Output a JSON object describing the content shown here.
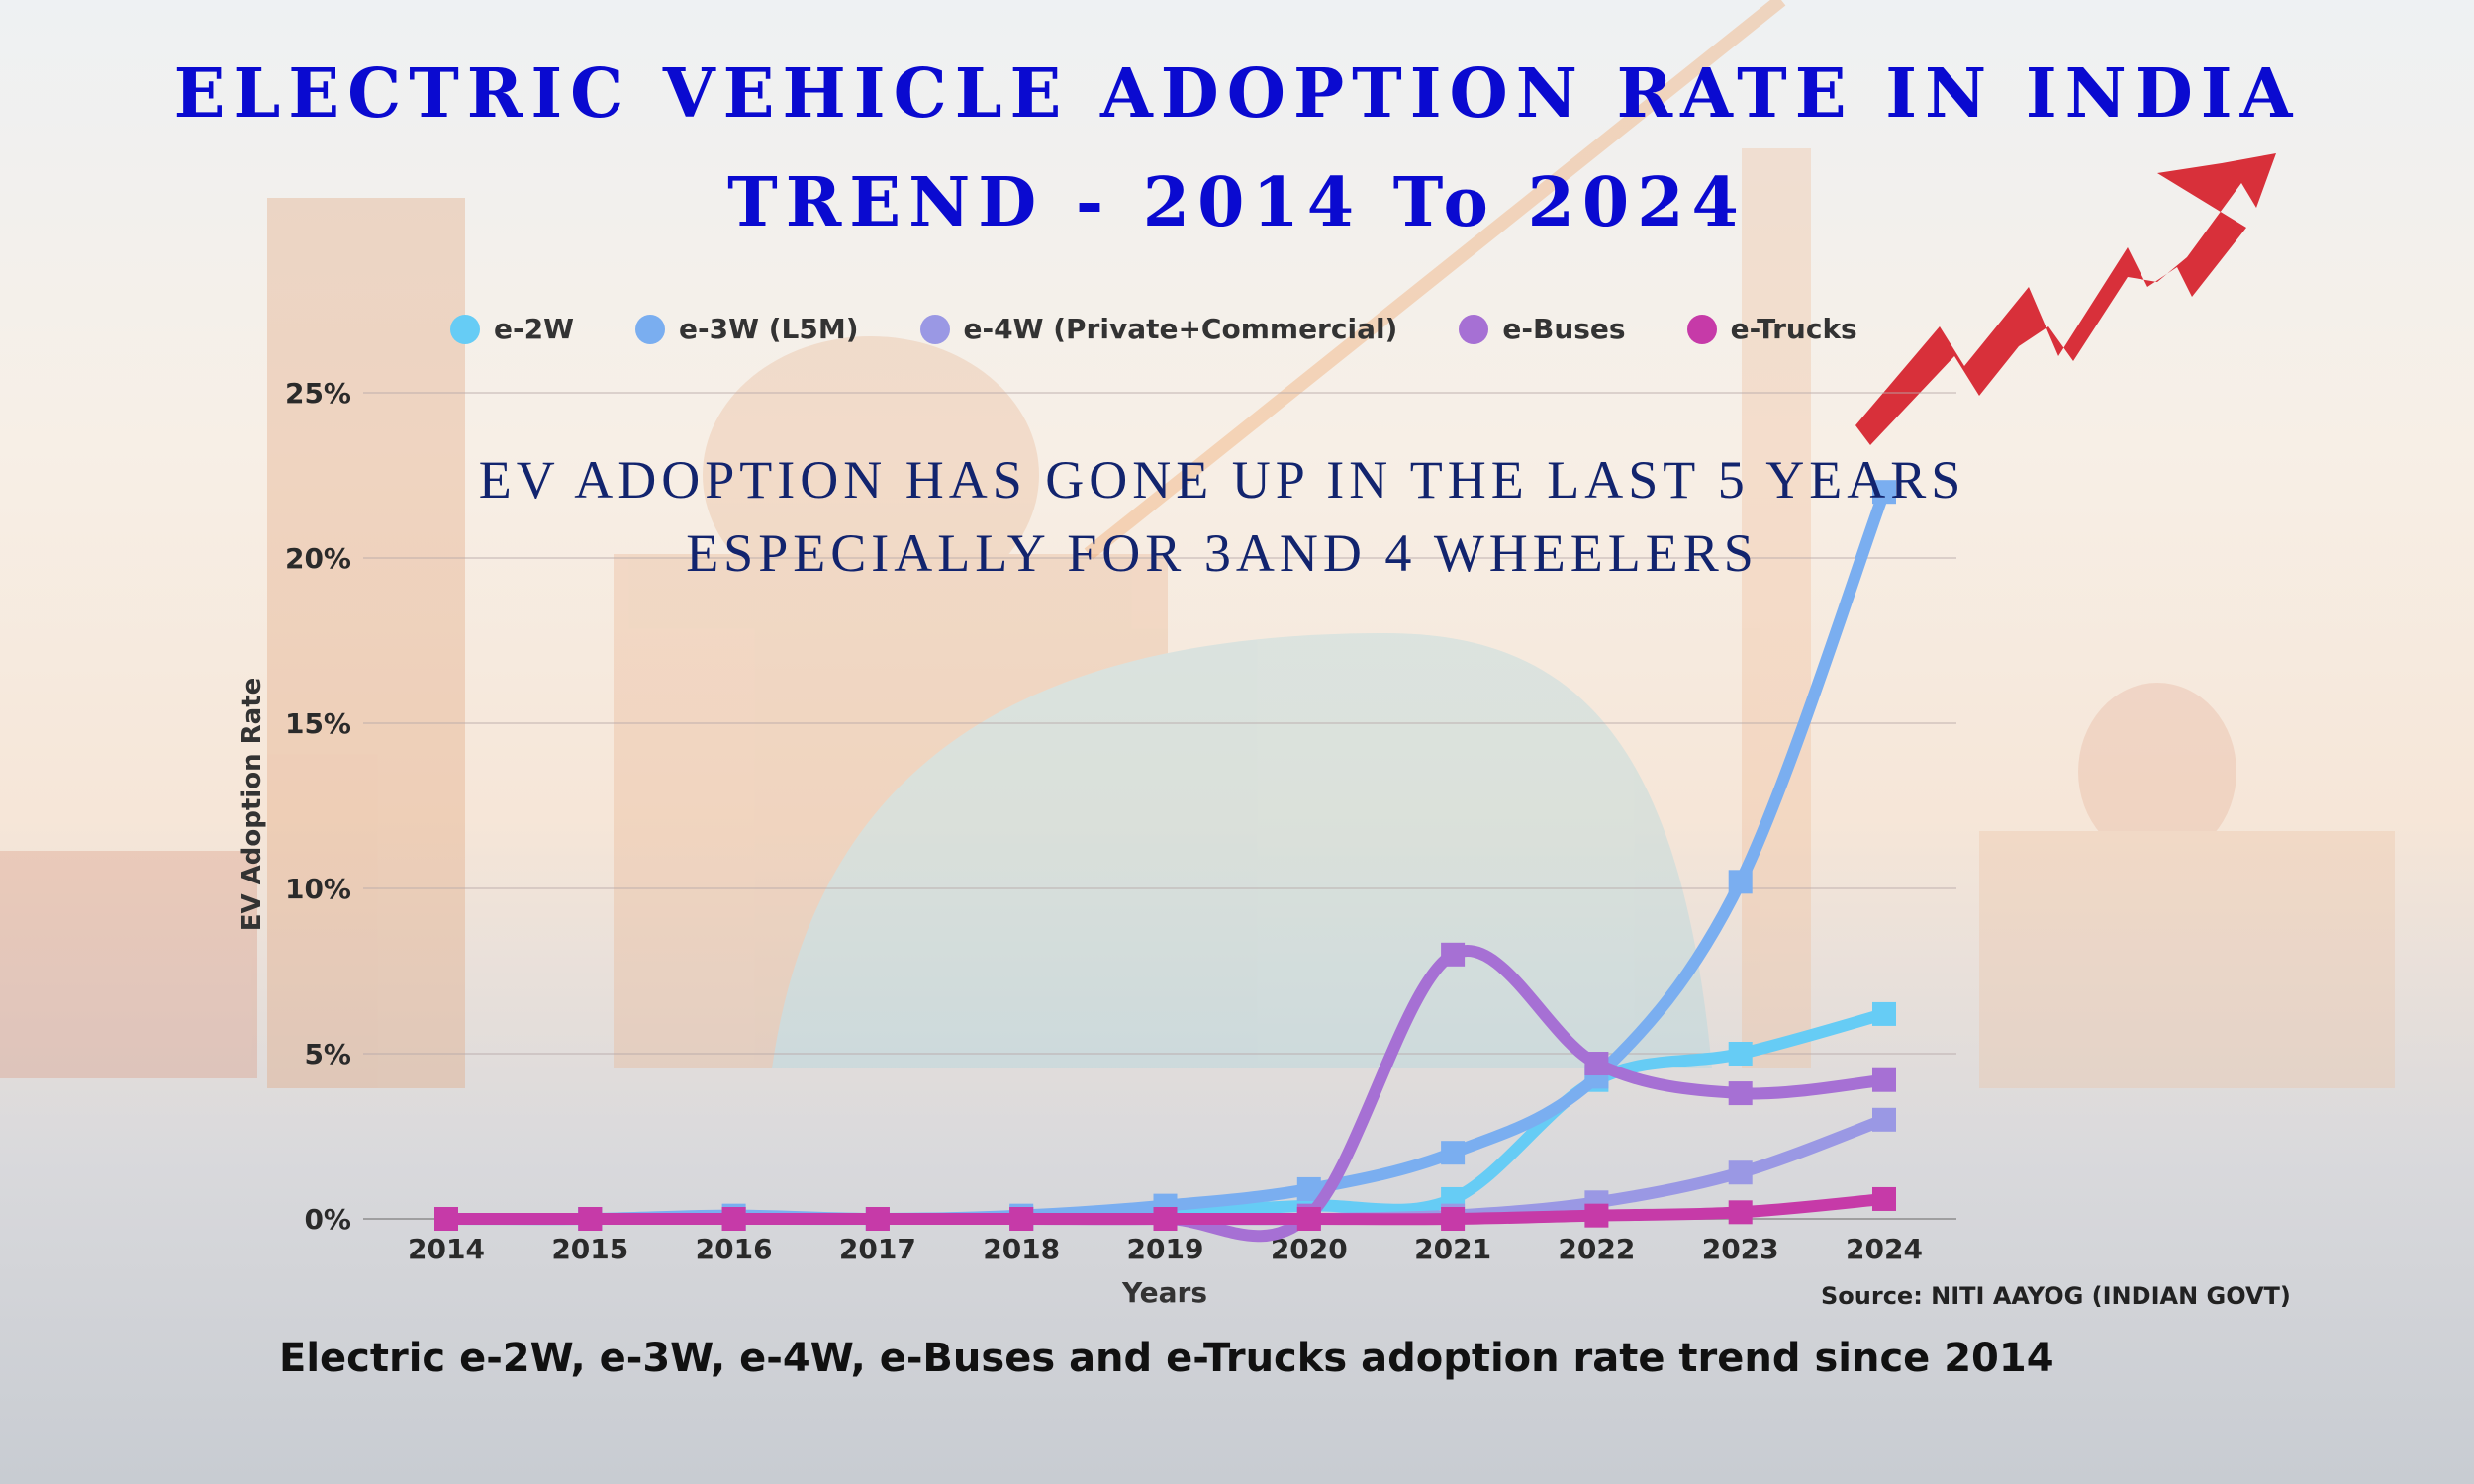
{
  "title_line1": "ELECTRIC VEHICLE ADOPTION RATE IN INDIA",
  "title_line2": "TREND - 2014 To 2024",
  "annotation": "EV ADOPTION HAS GONE UP IN THE LAST 5 YEARS ESPECIALLY FOR 3AND 4 WHEELERS",
  "caption": "Electric  e-2W, e-3W, e-4W, e-Buses and e-Trucks adoption rate trend since 2014",
  "source": "Source: NITI AAYOG (INDIAN GOVT)",
  "chart_data": {
    "type": "line",
    "xlabel": "Years",
    "ylabel": "EV Adoption Rate",
    "x": [
      "2014",
      "2015",
      "2016",
      "2017",
      "2018",
      "2019",
      "2020",
      "2021",
      "2022",
      "2023",
      "2024"
    ],
    "ylim": [
      0,
      25
    ],
    "yticks": [
      "0%",
      "5%",
      "10%",
      "15%",
      "20%",
      "25%"
    ],
    "grid": true,
    "legend": "top",
    "series": [
      {
        "name": "e-2W",
        "color": "#66ccf5",
        "values": [
          0,
          0,
          0,
          0,
          0.05,
          0.2,
          0.4,
          0.6,
          4.2,
          5.0,
          6.2
        ]
      },
      {
        "name": "e-3W (L5M)",
        "color": "#7aaef0",
        "values": [
          0,
          0,
          0.1,
          0,
          0.1,
          0.4,
          0.9,
          2.0,
          4.3,
          10.2,
          22.0
        ]
      },
      {
        "name": "e-4W (Private+Commercial)",
        "color": "#9a98e4",
        "values": [
          0,
          0,
          0,
          0,
          0,
          0,
          0,
          0.1,
          0.5,
          1.4,
          3.0
        ]
      },
      {
        "name": "e-Buses",
        "color": "#a670d4",
        "values": [
          0,
          0,
          0,
          0,
          0,
          0,
          0.1,
          8.0,
          4.7,
          3.8,
          4.2
        ]
      },
      {
        "name": "e-Trucks",
        "color": "#c63aa8",
        "values": [
          0,
          0,
          0,
          0,
          0,
          0,
          0,
          0,
          0.1,
          0.2,
          0.6
        ]
      }
    ]
  }
}
